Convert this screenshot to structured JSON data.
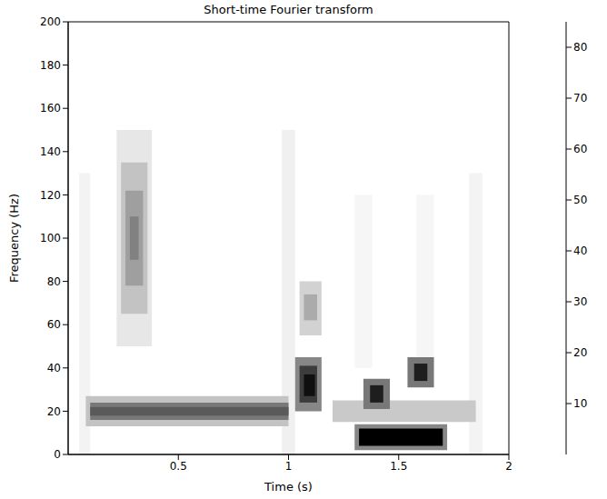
{
  "chart_data": {
    "type": "heatmap",
    "title": "Short-time Fourier transform",
    "x_label": "Time (s)",
    "y_label": "Frequency (Hz)",
    "xlim": [
      0,
      2
    ],
    "xticks": [
      0.5,
      1,
      1.5,
      2
    ],
    "ylim": [
      0,
      200
    ],
    "yticks": [
      0,
      20,
      40,
      60,
      80,
      100,
      120,
      140,
      160,
      180,
      200
    ],
    "colorbar": {
      "lim": [
        0,
        85
      ],
      "ticks": [
        10,
        20,
        30,
        40,
        50,
        60,
        70,
        80
      ]
    },
    "cells": [
      {
        "t": [
          0.05,
          0.1
        ],
        "f": [
          0,
          130
        ],
        "value": 4
      },
      {
        "t": [
          0.97,
          1.03
        ],
        "f": [
          0,
          150
        ],
        "value": 5
      },
      {
        "t": [
          1.82,
          1.88
        ],
        "f": [
          0,
          130
        ],
        "value": 4
      },
      {
        "t": [
          1.3,
          1.38
        ],
        "f": [
          40,
          120
        ],
        "value": 3
      },
      {
        "t": [
          1.58,
          1.66
        ],
        "f": [
          40,
          120
        ],
        "value": 3
      },
      {
        "t": [
          0.22,
          0.38
        ],
        "f": [
          50,
          150
        ],
        "value": 8
      },
      {
        "t": [
          0.24,
          0.36
        ],
        "f": [
          65,
          135
        ],
        "value": 20
      },
      {
        "t": [
          0.26,
          0.34
        ],
        "f": [
          78,
          122
        ],
        "value": 32
      },
      {
        "t": [
          0.28,
          0.32
        ],
        "f": [
          90,
          110
        ],
        "value": 42
      },
      {
        "t": [
          0.08,
          1.0
        ],
        "f": [
          13,
          27
        ],
        "value": 20
      },
      {
        "t": [
          0.1,
          1.0
        ],
        "f": [
          16,
          24
        ],
        "value": 45
      },
      {
        "t": [
          0.1,
          1.0
        ],
        "f": [
          18,
          22
        ],
        "value": 55
      },
      {
        "t": [
          1.2,
          1.85
        ],
        "f": [
          15,
          25
        ],
        "value": 18
      },
      {
        "t": [
          1.05,
          1.15
        ],
        "f": [
          55,
          80
        ],
        "value": 15
      },
      {
        "t": [
          1.07,
          1.13
        ],
        "f": [
          62,
          74
        ],
        "value": 28
      },
      {
        "t": [
          1.03,
          1.15
        ],
        "f": [
          20,
          45
        ],
        "value": 40
      },
      {
        "t": [
          1.05,
          1.13
        ],
        "f": [
          24,
          41
        ],
        "value": 65
      },
      {
        "t": [
          1.07,
          1.12
        ],
        "f": [
          27,
          37
        ],
        "value": 80
      },
      {
        "t": [
          1.3,
          1.72
        ],
        "f": [
          2,
          14
        ],
        "value": 40
      },
      {
        "t": [
          1.32,
          1.7
        ],
        "f": [
          4,
          12
        ],
        "value": 85
      },
      {
        "t": [
          1.34,
          1.46
        ],
        "f": [
          21,
          35
        ],
        "value": 45
      },
      {
        "t": [
          1.37,
          1.43
        ],
        "f": [
          24,
          32
        ],
        "value": 75
      },
      {
        "t": [
          1.54,
          1.66
        ],
        "f": [
          31,
          45
        ],
        "value": 45
      },
      {
        "t": [
          1.57,
          1.63
        ],
        "f": [
          34,
          42
        ],
        "value": 75
      }
    ]
  }
}
